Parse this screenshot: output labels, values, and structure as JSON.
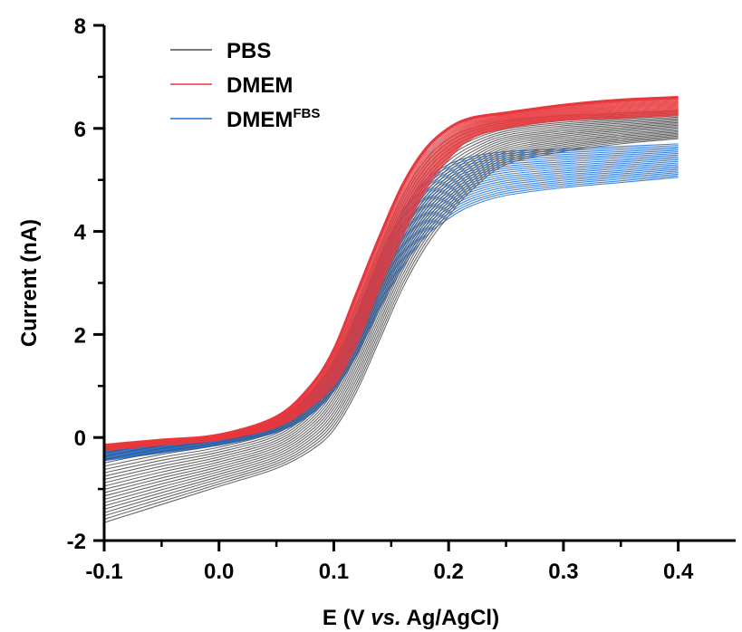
{
  "chart_data": {
    "type": "line",
    "xlabel": {
      "prefix": "E (V ",
      "italic": "vs.",
      "suffix": " Ag/AgCl)"
    },
    "ylabel": "Current (nA)",
    "xlim": [
      -0.1,
      0.45
    ],
    "ylim": [
      -2,
      8
    ],
    "x_ticks": [
      -0.1,
      0.0,
      0.1,
      0.2,
      0.3,
      0.4
    ],
    "x_tick_labels": [
      "-0.1",
      "0.0",
      "0.1",
      "0.2",
      "0.3",
      "0.4"
    ],
    "y_ticks": [
      -2,
      0,
      2,
      4,
      6,
      8
    ],
    "y_tick_labels": [
      "-2",
      "0",
      "2",
      "4",
      "6",
      "8"
    ],
    "grid": false,
    "legend_position": "top-left",
    "series": [
      {
        "name": "PBS",
        "color": "#4d4d4d",
        "x": [
          -0.1,
          -0.05,
          0.0,
          0.05,
          0.08,
          0.1,
          0.12,
          0.14,
          0.16,
          0.18,
          0.2,
          0.22,
          0.25,
          0.3,
          0.35,
          0.4
        ],
        "y_upper": [
          -0.3,
          -0.1,
          0.05,
          0.35,
          0.9,
          1.6,
          2.6,
          3.7,
          4.7,
          5.4,
          5.8,
          6.0,
          6.15,
          6.25,
          6.3,
          6.35
        ],
        "y_lower": [
          -1.65,
          -1.3,
          -0.95,
          -0.6,
          -0.25,
          0.15,
          0.9,
          1.9,
          2.9,
          3.7,
          4.3,
          4.8,
          5.3,
          5.55,
          5.7,
          5.8
        ]
      },
      {
        "name": "DMEM",
        "color": "#e8383d",
        "x": [
          -0.1,
          -0.05,
          0.0,
          0.05,
          0.08,
          0.1,
          0.12,
          0.14,
          0.16,
          0.18,
          0.2,
          0.22,
          0.25,
          0.3,
          0.35,
          0.4
        ],
        "y_upper": [
          -0.15,
          -0.05,
          0.05,
          0.4,
          1.0,
          1.7,
          2.8,
          3.9,
          4.9,
          5.6,
          6.0,
          6.2,
          6.3,
          6.45,
          6.55,
          6.6
        ],
        "y_lower": [
          -0.25,
          -0.15,
          -0.05,
          0.2,
          0.6,
          1.0,
          1.8,
          2.9,
          3.9,
          4.8,
          5.4,
          5.8,
          6.0,
          6.15,
          6.2,
          6.25
        ]
      },
      {
        "name": "DMEM",
        "name_sup": "FBS",
        "color": "#1f6fd6",
        "x": [
          -0.1,
          -0.05,
          0.0,
          0.05,
          0.08,
          0.1,
          0.12,
          0.14,
          0.16,
          0.18,
          0.2,
          0.22,
          0.25,
          0.3,
          0.35,
          0.4
        ],
        "y_upper": [
          -0.2,
          -0.1,
          0.05,
          0.35,
          0.9,
          1.5,
          2.4,
          3.5,
          4.4,
          5.0,
          5.3,
          5.45,
          5.55,
          5.6,
          5.65,
          5.7
        ],
        "y_lower": [
          -0.45,
          -0.3,
          -0.15,
          0.1,
          0.45,
          0.9,
          1.6,
          2.5,
          3.3,
          3.9,
          4.25,
          4.5,
          4.7,
          4.85,
          4.95,
          5.05
        ]
      }
    ]
  }
}
